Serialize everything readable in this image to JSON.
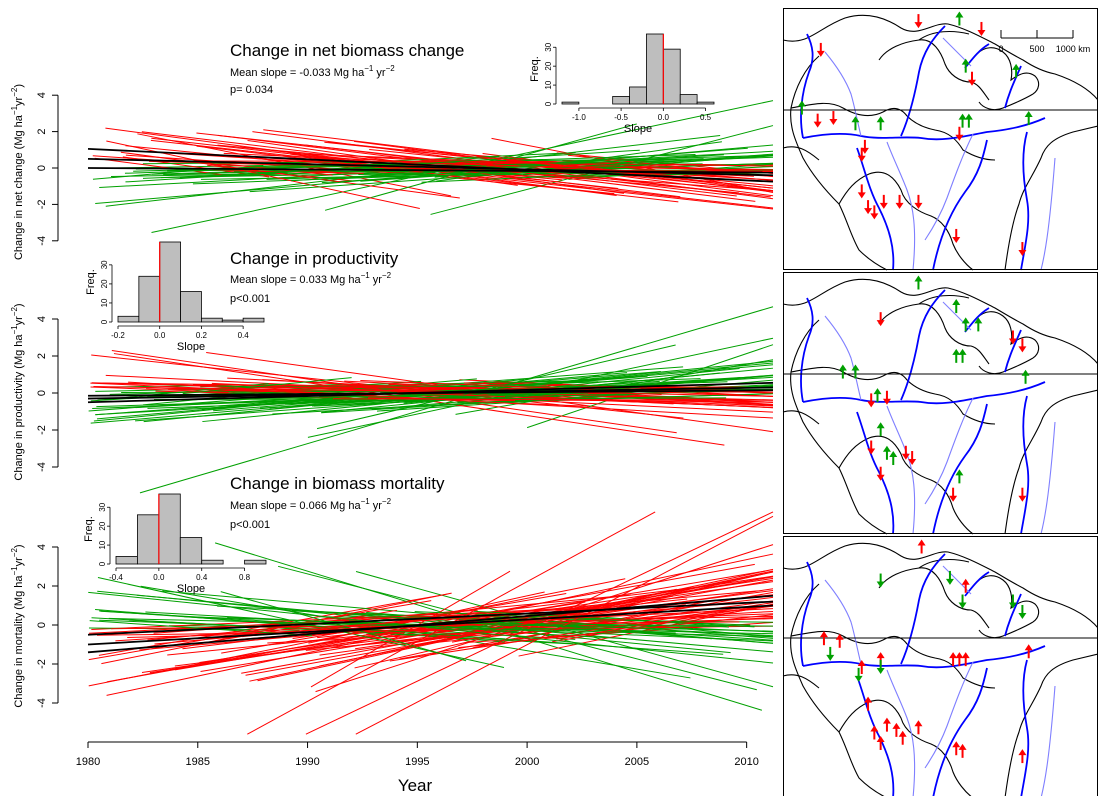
{
  "figure": {
    "xlabel": "Year",
    "x_ticks": [
      1980,
      1985,
      1990,
      1995,
      2000,
      2005,
      2010
    ],
    "xlim": [
      1980,
      2011.2
    ],
    "colors": {
      "increase": "#00a000",
      "decrease": "#ff0000",
      "mean": "#000000",
      "hist_bar": "#bebebe",
      "river_major": "#0000ff",
      "river_minor": "#7f7fff"
    }
  },
  "chart_data": [
    {
      "type": "line",
      "panel": "net",
      "title": "Change in net biomass change",
      "mean_text": "Mean slope = -0.033 Mg ha",
      "p_text": "p= 0.034",
      "ylabel": "Change in net change (Mg ha",
      "ylim": [
        -4,
        4
      ],
      "y_ticks": [
        -4,
        -2,
        0,
        2,
        4
      ],
      "mean_slope": -0.033,
      "mean_lines": [
        {
          "x": [
            1980,
            2011.2
          ],
          "y": [
            1.05,
            -0.75
          ]
        },
        {
          "x": [
            1980,
            2011.2
          ],
          "y": [
            0.5,
            -0.4
          ]
        },
        {
          "x": [
            1980,
            2011.2
          ],
          "y": [
            0.0,
            -0.25
          ]
        }
      ],
      "histogram": {
        "xlabel": "Slope",
        "ylabel": "Freq.",
        "x_ticks": [
          -1.0,
          -0.5,
          0.0,
          0.5
        ],
        "y_ticks": [
          0,
          10,
          20,
          30
        ],
        "bins": [
          -1.2,
          -1.0,
          -0.8,
          -0.6,
          -0.4,
          -0.2,
          0.0,
          0.2,
          0.4,
          0.6
        ],
        "counts": [
          1,
          0,
          0,
          4,
          9,
          37,
          29,
          5,
          1
        ],
        "xlim": [
          -1.2,
          0.6
        ],
        "ylim": [
          0,
          37
        ]
      }
    },
    {
      "type": "line",
      "panel": "prod",
      "title": "Change in productivity",
      "mean_text": "Mean slope = 0.033 Mg ha",
      "p_text": "p<0.001",
      "ylabel": "Change in productivity (Mg ha",
      "ylim": [
        -4,
        4
      ],
      "y_ticks": [
        -4,
        -2,
        0,
        2,
        4
      ],
      "mean_slope": 0.033,
      "mean_lines": [
        {
          "x": [
            1980,
            2011.2
          ],
          "y": [
            -0.5,
            0.55
          ]
        },
        {
          "x": [
            1980,
            2011.2
          ],
          "y": [
            -0.3,
            0.3
          ]
        },
        {
          "x": [
            1980,
            2011.2
          ],
          "y": [
            -0.15,
            0.15
          ]
        }
      ],
      "histogram": {
        "xlabel": "Slope",
        "ylabel": "Freq.",
        "x_ticks": [
          -0.2,
          0.0,
          0.2,
          0.4
        ],
        "y_ticks": [
          0,
          10,
          20,
          30
        ],
        "bins": [
          -0.2,
          -0.1,
          0.0,
          0.1,
          0.2,
          0.3,
          0.4,
          0.5
        ],
        "counts": [
          3,
          24,
          42,
          16,
          2,
          1,
          2
        ],
        "xlim": [
          -0.2,
          0.5
        ],
        "ylim": [
          0,
          42
        ]
      }
    },
    {
      "type": "line",
      "panel": "mort",
      "title": "Change in biomass mortality",
      "mean_text": "Mean slope = 0.066 Mg ha",
      "p_text": "p<0.001",
      "ylabel": "Change in mortality (Mg ha",
      "ylim": [
        -4,
        4
      ],
      "y_ticks": [
        -4,
        -2,
        0,
        2,
        4
      ],
      "mean_slope": 0.066,
      "mean_lines": [
        {
          "x": [
            1980,
            2011.2
          ],
          "y": [
            -0.5,
            1.2
          ]
        },
        {
          "x": [
            1980,
            2011.2
          ],
          "y": [
            -1.0,
            1.0
          ]
        },
        {
          "x": [
            1980,
            2011.2
          ],
          "y": [
            -1.4,
            1.5
          ]
        }
      ],
      "histogram": {
        "xlabel": "Slope",
        "ylabel": "Freq.",
        "x_ticks": [
          -0.4,
          0.0,
          0.4,
          0.8
        ],
        "y_ticks": [
          0,
          10,
          20,
          30
        ],
        "bins": [
          -0.4,
          -0.2,
          0.0,
          0.2,
          0.4,
          0.6,
          0.8,
          1.0
        ],
        "counts": [
          4,
          26,
          37,
          14,
          2,
          0,
          2
        ],
        "xlim": [
          -0.4,
          1.0
        ],
        "ylim": [
          0,
          37
        ]
      }
    }
  ],
  "map": {
    "scale_labels": [
      "0",
      "500",
      "1000 km"
    ],
    "panels": [
      {
        "arrows": [
          [
            "r",
            "d",
            0.12,
            0.16
          ],
          [
            "r",
            "d",
            0.43,
            0.05
          ],
          [
            "g",
            "u",
            0.56,
            0.04
          ],
          [
            "r",
            "d",
            0.63,
            0.08
          ],
          [
            "g",
            "u",
            0.58,
            0.22
          ],
          [
            "r",
            "d",
            0.6,
            0.27
          ],
          [
            "g",
            "u",
            0.74,
            0.24
          ],
          [
            "g",
            "u",
            0.06,
            0.38
          ],
          [
            "r",
            "d",
            0.11,
            0.43
          ],
          [
            "r",
            "d",
            0.16,
            0.42
          ],
          [
            "g",
            "u",
            0.23,
            0.44
          ],
          [
            "g",
            "u",
            0.31,
            0.44
          ],
          [
            "r",
            "d",
            0.26,
            0.53
          ],
          [
            "r",
            "d",
            0.25,
            0.56
          ],
          [
            "g",
            "u",
            0.57,
            0.43
          ],
          [
            "g",
            "u",
            0.59,
            0.43
          ],
          [
            "r",
            "d",
            0.56,
            0.48
          ],
          [
            "g",
            "u",
            0.78,
            0.42
          ],
          [
            "r",
            "d",
            0.25,
            0.7
          ],
          [
            "r",
            "d",
            0.27,
            0.76
          ],
          [
            "r",
            "d",
            0.29,
            0.78
          ],
          [
            "r",
            "d",
            0.32,
            0.74
          ],
          [
            "r",
            "d",
            0.37,
            0.74
          ],
          [
            "r",
            "d",
            0.43,
            0.74
          ],
          [
            "r",
            "d",
            0.55,
            0.87
          ],
          [
            "r",
            "d",
            0.76,
            0.92
          ]
        ]
      },
      {
        "arrows": [
          [
            "g",
            "u",
            0.43,
            0.04
          ],
          [
            "r",
            "d",
            0.31,
            0.18
          ],
          [
            "g",
            "u",
            0.55,
            0.13
          ],
          [
            "g",
            "u",
            0.58,
            0.2
          ],
          [
            "g",
            "u",
            0.62,
            0.2
          ],
          [
            "r",
            "d",
            0.73,
            0.25
          ],
          [
            "r",
            "d",
            0.76,
            0.28
          ],
          [
            "g",
            "u",
            0.19,
            0.38
          ],
          [
            "g",
            "u",
            0.23,
            0.38
          ],
          [
            "g",
            "u",
            0.3,
            0.47
          ],
          [
            "r",
            "d",
            0.28,
            0.49
          ],
          [
            "r",
            "d",
            0.33,
            0.48
          ],
          [
            "g",
            "u",
            0.55,
            0.32
          ],
          [
            "g",
            "u",
            0.57,
            0.32
          ],
          [
            "g",
            "u",
            0.77,
            0.4
          ],
          [
            "r",
            "d",
            0.28,
            0.67
          ],
          [
            "g",
            "u",
            0.31,
            0.6
          ],
          [
            "g",
            "u",
            0.33,
            0.69
          ],
          [
            "r",
            "d",
            0.31,
            0.77
          ],
          [
            "g",
            "u",
            0.35,
            0.71
          ],
          [
            "r",
            "d",
            0.39,
            0.69
          ],
          [
            "r",
            "d",
            0.41,
            0.71
          ],
          [
            "g",
            "u",
            0.56,
            0.78
          ],
          [
            "r",
            "d",
            0.54,
            0.85
          ],
          [
            "r",
            "d",
            0.76,
            0.85
          ]
        ]
      },
      {
        "arrows": [
          [
            "r",
            "u",
            0.44,
            0.04
          ],
          [
            "g",
            "d",
            0.31,
            0.17
          ],
          [
            "g",
            "d",
            0.53,
            0.16
          ],
          [
            "r",
            "u",
            0.58,
            0.19
          ],
          [
            "g",
            "d",
            0.57,
            0.25
          ],
          [
            "g",
            "d",
            0.73,
            0.25
          ],
          [
            "g",
            "d",
            0.76,
            0.29
          ],
          [
            "r",
            "u",
            0.13,
            0.39
          ],
          [
            "r",
            "u",
            0.18,
            0.4
          ],
          [
            "g",
            "d",
            0.15,
            0.45
          ],
          [
            "r",
            "u",
            0.25,
            0.5
          ],
          [
            "g",
            "d",
            0.24,
            0.53
          ],
          [
            "r",
            "u",
            0.31,
            0.47
          ],
          [
            "g",
            "d",
            0.31,
            0.5
          ],
          [
            "r",
            "u",
            0.54,
            0.47
          ],
          [
            "r",
            "u",
            0.56,
            0.47
          ],
          [
            "r",
            "u",
            0.58,
            0.47
          ],
          [
            "r",
            "u",
            0.78,
            0.44
          ],
          [
            "r",
            "u",
            0.27,
            0.64
          ],
          [
            "r",
            "u",
            0.29,
            0.75
          ],
          [
            "r",
            "u",
            0.31,
            0.79
          ],
          [
            "r",
            "u",
            0.33,
            0.72
          ],
          [
            "r",
            "u",
            0.36,
            0.74
          ],
          [
            "r",
            "u",
            0.38,
            0.77
          ],
          [
            "r",
            "u",
            0.43,
            0.73
          ],
          [
            "r",
            "u",
            0.55,
            0.81
          ],
          [
            "r",
            "u",
            0.57,
            0.82
          ],
          [
            "r",
            "u",
            0.76,
            0.84
          ]
        ]
      }
    ]
  }
}
